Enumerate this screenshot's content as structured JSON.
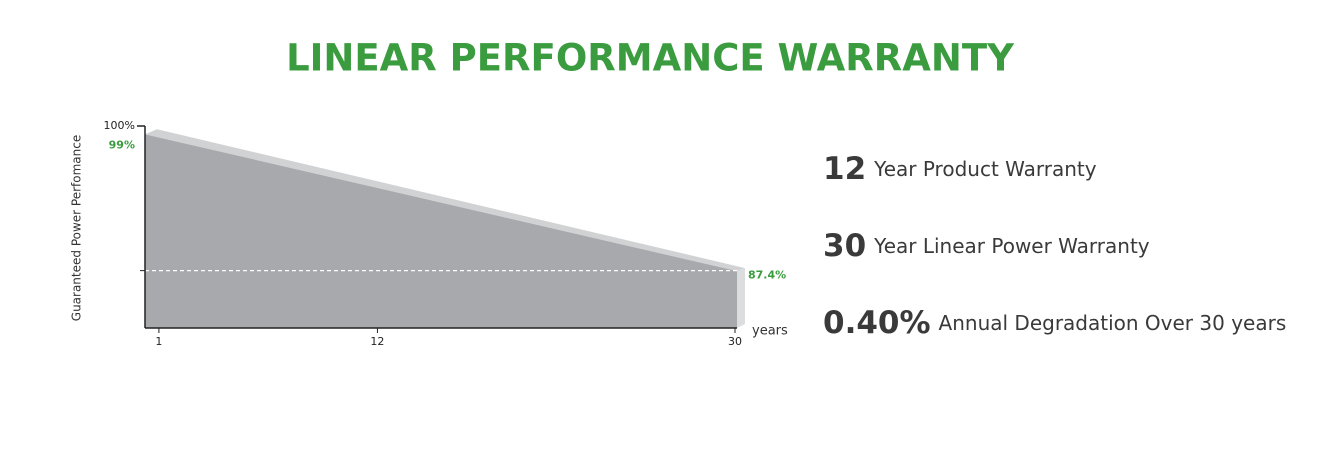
{
  "chart_data": {
    "type": "area",
    "title": "LINEAR PERFORMANCE WARRANTY",
    "x": [
      1,
      30
    ],
    "values": [
      99,
      87.4
    ],
    "value_labels": [
      "99%",
      "87.4%"
    ],
    "color": "#a7a9ac",
    "label_color": "#3a9c3f",
    "xlim": [
      0.3,
      30.1
    ],
    "xticks": [
      1,
      12,
      30
    ],
    "ylim": [
      82.4,
      100
    ],
    "yticks": [
      {
        "value": 100,
        "label": "100%"
      }
    ],
    "x_label": "years",
    "y_label": "Guaranteed Power Perfomance"
  },
  "features": [
    {
      "number": "12",
      "text": "Year Product Warranty"
    },
    {
      "number": "30",
      "text": "Year Linear Power Warranty"
    },
    {
      "number": "0.40%",
      "text": "Annual Degradation Over 30 years"
    }
  ]
}
